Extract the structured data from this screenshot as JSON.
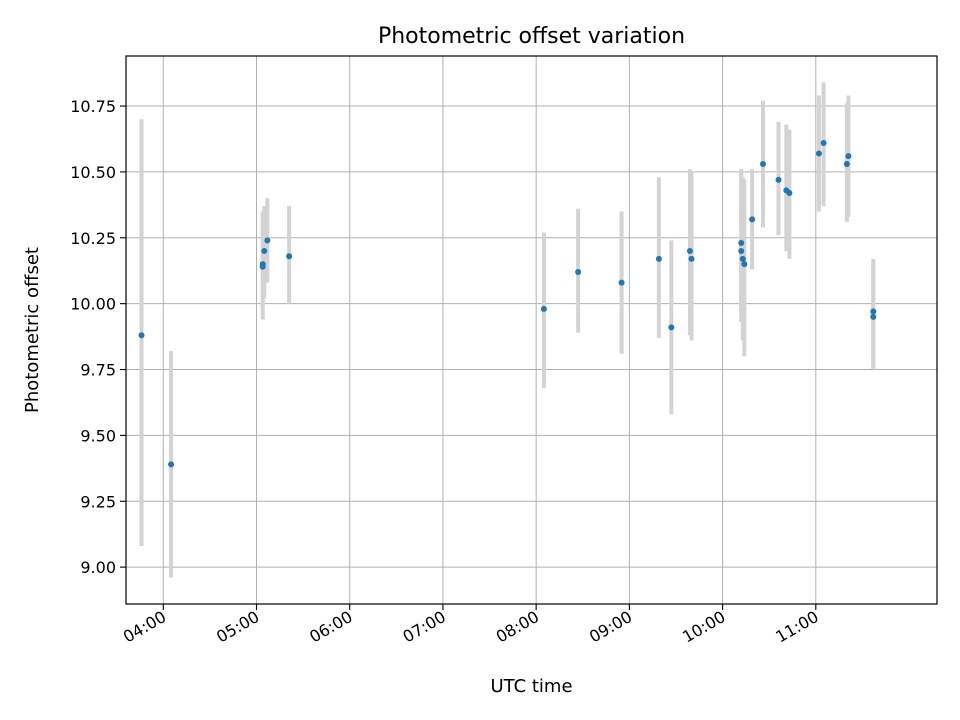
{
  "chart_data": {
    "type": "scatter",
    "title": "Photometric offset variation",
    "xlabel": "UTC time",
    "ylabel": "Photometric offset",
    "x_tick_labels": [
      "04:00",
      "05:00",
      "06:00",
      "07:00",
      "08:00",
      "09:00",
      "10:00",
      "11:00"
    ],
    "y_ticks": [
      9.0,
      9.25,
      9.5,
      9.75,
      10.0,
      10.25,
      10.5,
      10.75
    ],
    "y_tick_labels": [
      "9.00",
      "9.25",
      "9.50",
      "9.75",
      "10.00",
      "10.25",
      "10.50",
      "10.75"
    ],
    "xlim": [
      "03:36",
      "12:18"
    ],
    "ylim": [
      8.86,
      10.94
    ],
    "grid": true,
    "legend": false,
    "colors": {
      "marker": "#1f77b4",
      "errorbar": "#d3d3d3",
      "grid": "#b0b0b0"
    },
    "series": [
      {
        "points": [
          {
            "x": "03:46",
            "y": 9.88,
            "yerr_low": 9.08,
            "yerr_high": 10.7
          },
          {
            "x": "04:05",
            "y": 9.39,
            "yerr_low": 8.96,
            "yerr_high": 9.82
          },
          {
            "x": "05:04",
            "y": 10.15,
            "yerr_low": 9.94,
            "yerr_high": 10.35
          },
          {
            "x": "05:04",
            "y": 10.14,
            "yerr_low": 9.98,
            "yerr_high": 10.32
          },
          {
            "x": "05:05",
            "y": 10.2,
            "yerr_low": 10.02,
            "yerr_high": 10.37
          },
          {
            "x": "05:07",
            "y": 10.24,
            "yerr_low": 10.08,
            "yerr_high": 10.4
          },
          {
            "x": "05:21",
            "y": 10.18,
            "yerr_low": 10.0,
            "yerr_high": 10.37
          },
          {
            "x": "08:05",
            "y": 9.98,
            "yerr_low": 9.68,
            "yerr_high": 10.27
          },
          {
            "x": "08:27",
            "y": 10.12,
            "yerr_low": 9.89,
            "yerr_high": 10.36
          },
          {
            "x": "08:55",
            "y": 10.08,
            "yerr_low": 9.81,
            "yerr_high": 10.35
          },
          {
            "x": "09:19",
            "y": 10.17,
            "yerr_low": 9.87,
            "yerr_high": 10.48
          },
          {
            "x": "09:27",
            "y": 9.91,
            "yerr_low": 9.58,
            "yerr_high": 10.24
          },
          {
            "x": "09:39",
            "y": 10.2,
            "yerr_low": 9.88,
            "yerr_high": 10.51
          },
          {
            "x": "09:40",
            "y": 10.17,
            "yerr_low": 9.86,
            "yerr_high": 10.5
          },
          {
            "x": "10:12",
            "y": 10.23,
            "yerr_low": 9.95,
            "yerr_high": 10.51
          },
          {
            "x": "10:12",
            "y": 10.2,
            "yerr_low": 9.93,
            "yerr_high": 10.51
          },
          {
            "x": "10:13",
            "y": 10.17,
            "yerr_low": 9.86,
            "yerr_high": 10.48
          },
          {
            "x": "10:14",
            "y": 10.15,
            "yerr_low": 9.8,
            "yerr_high": 10.47
          },
          {
            "x": "10:19",
            "y": 10.32,
            "yerr_low": 10.13,
            "yerr_high": 10.51
          },
          {
            "x": "10:26",
            "y": 10.53,
            "yerr_low": 10.29,
            "yerr_high": 10.77
          },
          {
            "x": "10:36",
            "y": 10.47,
            "yerr_low": 10.26,
            "yerr_high": 10.69
          },
          {
            "x": "10:41",
            "y": 10.43,
            "yerr_low": 10.2,
            "yerr_high": 10.68
          },
          {
            "x": "10:43",
            "y": 10.42,
            "yerr_low": 10.17,
            "yerr_high": 10.66
          },
          {
            "x": "11:02",
            "y": 10.57,
            "yerr_low": 10.35,
            "yerr_high": 10.79
          },
          {
            "x": "11:05",
            "y": 10.61,
            "yerr_low": 10.37,
            "yerr_high": 10.84
          },
          {
            "x": "11:20",
            "y": 10.53,
            "yerr_low": 10.31,
            "yerr_high": 10.76
          },
          {
            "x": "11:21",
            "y": 10.56,
            "yerr_low": 10.33,
            "yerr_high": 10.79
          },
          {
            "x": "11:37",
            "y": 9.97,
            "yerr_low": 9.75,
            "yerr_high": 10.17
          },
          {
            "x": "11:37",
            "y": 9.95,
            "yerr_low": 9.76,
            "yerr_high": 10.15
          }
        ]
      }
    ]
  }
}
